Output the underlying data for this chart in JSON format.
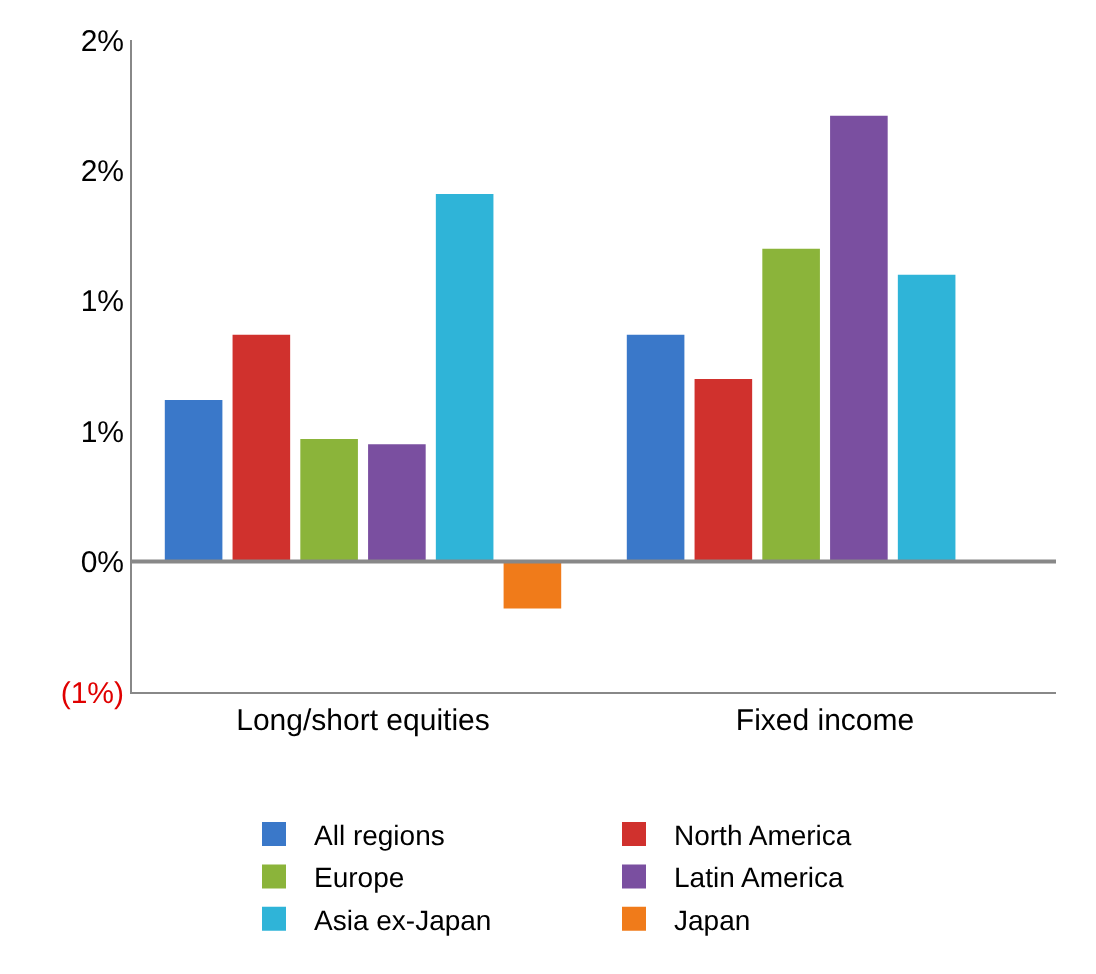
{
  "chart_data": {
    "type": "bar",
    "categories": [
      "Long/short equities",
      "Fixed income"
    ],
    "series": [
      {
        "name": "All regions",
        "color": "#3a78c9",
        "values": [
          0.62,
          0.87
        ]
      },
      {
        "name": "North America",
        "color": "#d0312d",
        "values": [
          0.87,
          0.7
        ]
      },
      {
        "name": "Europe",
        "color": "#8bb43a",
        "values": [
          0.47,
          1.2
        ]
      },
      {
        "name": "Latin America",
        "color": "#7a4fa0",
        "values": [
          0.45,
          1.71
        ]
      },
      {
        "name": "Asia ex-Japan",
        "color": "#2fb4d8",
        "values": [
          1.41,
          1.1
        ]
      },
      {
        "name": "Japan",
        "color": "#f07b1a",
        "values": [
          -0.18,
          null
        ]
      }
    ],
    "ylim": [
      -0.5,
      2.0
    ],
    "yticks": [
      {
        "value": -0.5,
        "label": "(1%)"
      },
      {
        "value": 0,
        "label": "0%"
      },
      {
        "value": 0.5,
        "label": "1%"
      },
      {
        "value": 1.0,
        "label": "1%"
      },
      {
        "value": 1.5,
        "label": "2%"
      },
      {
        "value": 2.0,
        "label": "2%"
      }
    ],
    "ref_lines": [
      {
        "axis": "y",
        "value": 0,
        "color": "#888888"
      }
    ],
    "legend": "bottom"
  }
}
